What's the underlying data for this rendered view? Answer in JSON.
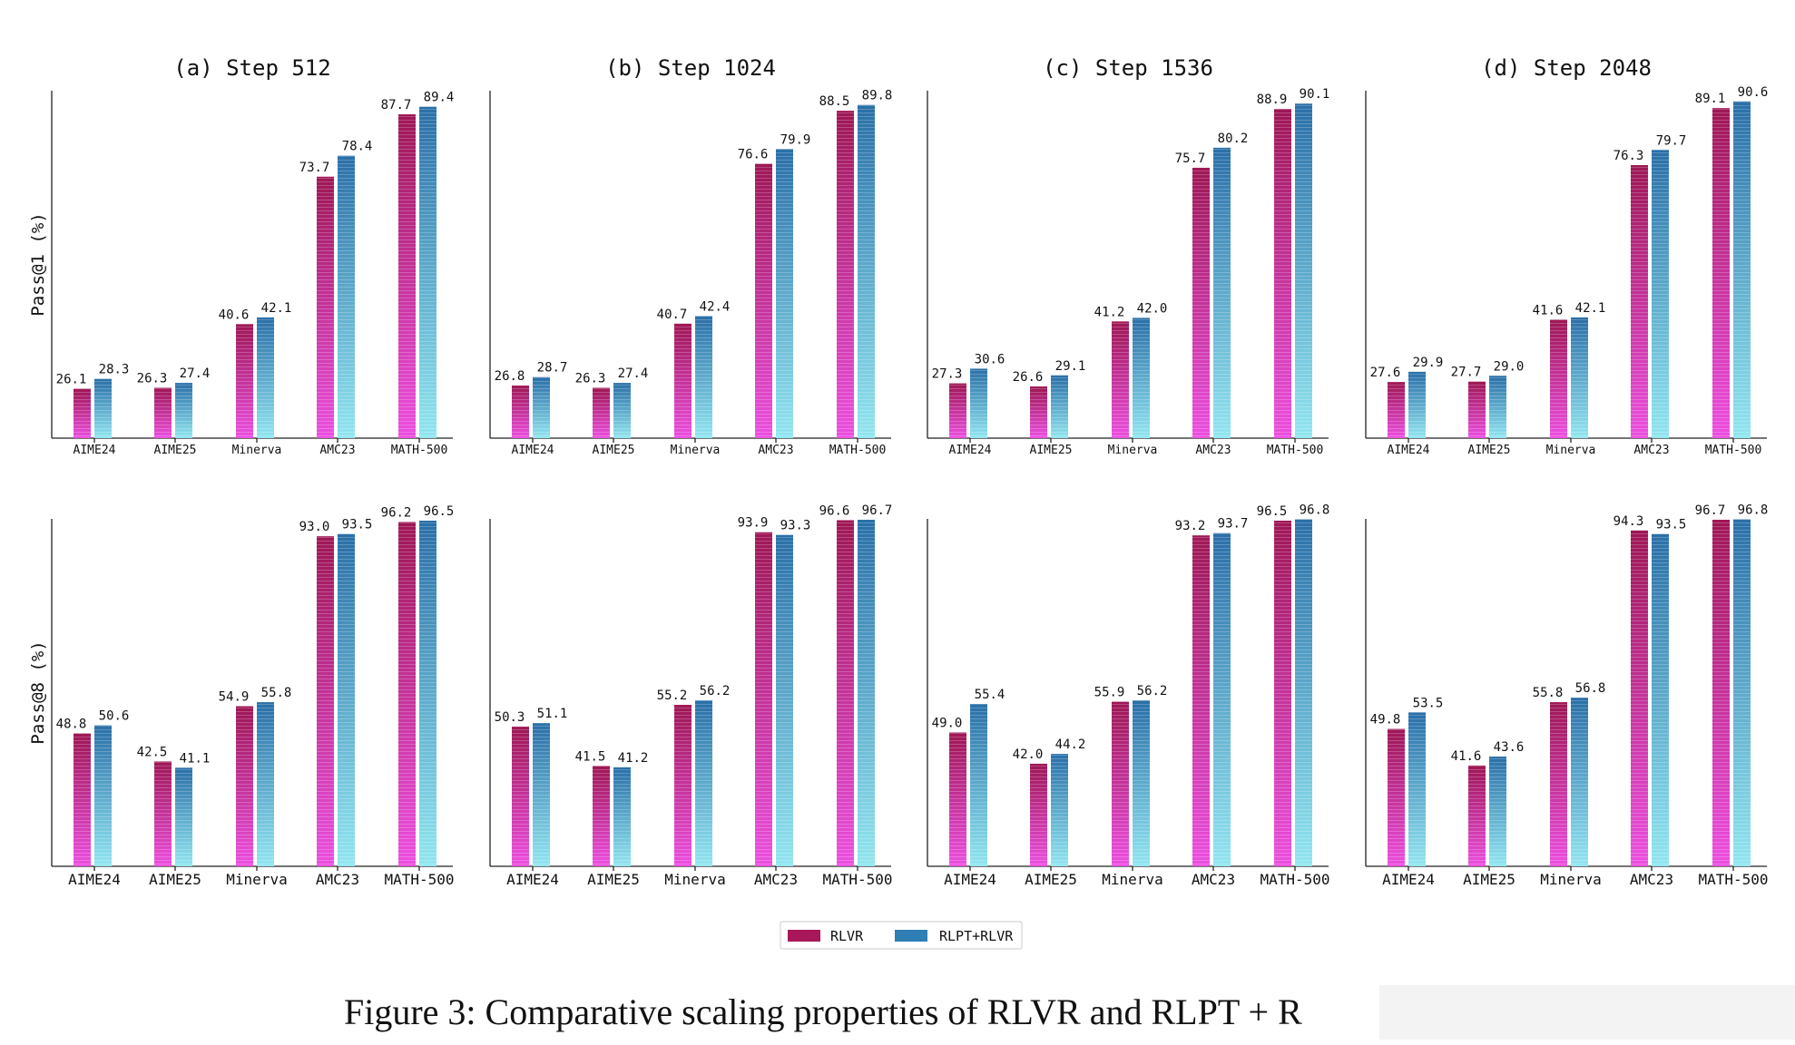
{
  "chart_data": [
    {
      "type": "bar",
      "title": "(a) Step 512",
      "ylabel": "Pass@1 (%)",
      "categories": [
        "AIME24",
        "AIME25",
        "Minerva",
        "AMC23",
        "MATH-500"
      ],
      "series": [
        {
          "name": "RLVR",
          "values": [
            26.1,
            26.3,
            40.6,
            73.7,
            87.7
          ]
        },
        {
          "name": "RLPT+RLVR",
          "values": [
            28.3,
            27.4,
            42.1,
            78.4,
            89.4
          ]
        }
      ]
    },
    {
      "type": "bar",
      "title": "(b) Step 1024",
      "ylabel": "",
      "categories": [
        "AIME24",
        "AIME25",
        "Minerva",
        "AMC23",
        "MATH-500"
      ],
      "series": [
        {
          "name": "RLVR",
          "values": [
            26.8,
            26.3,
            40.7,
            76.6,
            88.5
          ]
        },
        {
          "name": "RLPT+RLVR",
          "values": [
            28.7,
            27.4,
            42.4,
            79.9,
            89.8
          ]
        }
      ]
    },
    {
      "type": "bar",
      "title": "(c) Step 1536",
      "ylabel": "",
      "categories": [
        "AIME24",
        "AIME25",
        "Minerva",
        "AMC23",
        "MATH-500"
      ],
      "series": [
        {
          "name": "RLVR",
          "values": [
            27.3,
            26.6,
            41.2,
            75.7,
            88.9
          ]
        },
        {
          "name": "RLPT+RLVR",
          "values": [
            30.6,
            29.1,
            42.0,
            80.2,
            90.1
          ]
        }
      ]
    },
    {
      "type": "bar",
      "title": "(d) Step 2048",
      "ylabel": "",
      "categories": [
        "AIME24",
        "AIME25",
        "Minerva",
        "AMC23",
        "MATH-500"
      ],
      "series": [
        {
          "name": "RLVR",
          "values": [
            27.6,
            27.7,
            41.6,
            76.3,
            89.1
          ]
        },
        {
          "name": "RLPT+RLVR",
          "values": [
            29.9,
            29.0,
            42.1,
            79.7,
            90.6
          ]
        }
      ]
    },
    {
      "type": "bar",
      "title": "",
      "ylabel": "Pass@8 (%)",
      "categories": [
        "AIME24",
        "AIME25",
        "Minerva",
        "AMC23",
        "MATH-500"
      ],
      "series": [
        {
          "name": "RLVR",
          "values": [
            48.8,
            42.5,
            54.9,
            93.0,
            96.2
          ]
        },
        {
          "name": "RLPT+RLVR",
          "values": [
            50.6,
            41.1,
            55.8,
            93.5,
            96.5
          ]
        }
      ]
    },
    {
      "type": "bar",
      "title": "",
      "ylabel": "",
      "categories": [
        "AIME24",
        "AIME25",
        "Minerva",
        "AMC23",
        "MATH-500"
      ],
      "series": [
        {
          "name": "RLVR",
          "values": [
            50.3,
            41.5,
            55.2,
            93.9,
            96.6
          ]
        },
        {
          "name": "RLPT+RLVR",
          "values": [
            51.1,
            41.2,
            56.2,
            93.3,
            96.7
          ]
        }
      ]
    },
    {
      "type": "bar",
      "title": "",
      "ylabel": "",
      "categories": [
        "AIME24",
        "AIME25",
        "Minerva",
        "AMC23",
        "MATH-500"
      ],
      "series": [
        {
          "name": "RLVR",
          "values": [
            49.0,
            42.0,
            55.9,
            93.2,
            96.5
          ]
        },
        {
          "name": "RLPT+RLVR",
          "values": [
            55.4,
            44.2,
            56.2,
            93.7,
            96.8
          ]
        }
      ]
    },
    {
      "type": "bar",
      "title": "",
      "ylabel": "",
      "categories": [
        "AIME24",
        "AIME25",
        "Minerva",
        "AMC23",
        "MATH-500"
      ],
      "series": [
        {
          "name": "RLVR",
          "values": [
            49.8,
            41.6,
            55.8,
            94.3,
            96.7
          ]
        },
        {
          "name": "RLPT+RLVR",
          "values": [
            53.5,
            43.6,
            56.8,
            93.5,
            96.8
          ]
        }
      ]
    }
  ],
  "legend": {
    "items": [
      {
        "label": "RLVR",
        "color": "#a8175a"
      },
      {
        "label": "RLPT+RLVR",
        "color": "#2f7fb5"
      }
    ]
  },
  "colors": {
    "rlvr_top": "#9e1755",
    "rlvr_bottom": "#ec4fe0",
    "rlpt_top": "#2a6fa8",
    "rlpt_bottom": "#92e6f0"
  },
  "caption": "Figure 3: Comparative scaling properties of RLVR and RLPT + R"
}
